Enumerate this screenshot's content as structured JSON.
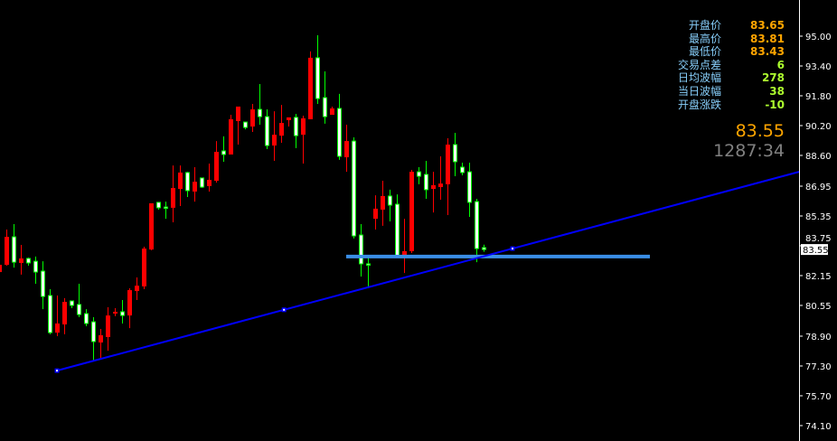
{
  "info_panel": {
    "rows": [
      {
        "label": "开盘价",
        "value": "83.65",
        "color": "#ffa500"
      },
      {
        "label": "最高价",
        "value": "83.81",
        "color": "#ffa500"
      },
      {
        "label": "最低价",
        "value": "83.43",
        "color": "#ffa500"
      },
      {
        "label": "交易点差",
        "value": "6",
        "color": "#adff2f"
      },
      {
        "label": "日均波幅",
        "value": "278",
        "color": "#adff2f"
      },
      {
        "label": "当日波幅",
        "value": "38",
        "color": "#adff2f"
      },
      {
        "label": "开盘涨跌",
        "value": "-10",
        "color": "#adff2f"
      }
    ],
    "current_price": "83.55",
    "countdown": "1287:34"
  },
  "chart_data": {
    "type": "candlestick",
    "ylim": [
      73.5,
      95.9
    ],
    "yticks": [
      "95.00",
      "93.40",
      "91.80",
      "90.20",
      "88.60",
      "86.95",
      "85.35",
      "83.75",
      "82.15",
      "80.55",
      "78.90",
      "77.30",
      "75.70",
      "74.10"
    ],
    "current_price_label": "83.55",
    "colors": {
      "up": "#ff0000",
      "down_fill": "#ffffff",
      "down_outline": "#00ff00",
      "trendline": "#0000ff",
      "support": "#3a8ee6",
      "axis": "#ffffff"
    },
    "grid": false,
    "candles_ohlc": [
      [
        82.34,
        82.87,
        82.25,
        82.73
      ],
      [
        82.73,
        84.62,
        82.68,
        84.23
      ],
      [
        84.23,
        84.91,
        82.58,
        82.87
      ],
      [
        82.83,
        83.8,
        82.2,
        83.07
      ],
      [
        83.07,
        83.12,
        82.68,
        82.83
      ],
      [
        82.92,
        83.17,
        81.71,
        82.34
      ],
      [
        82.39,
        82.92,
        80.35,
        81.03
      ],
      [
        81.08,
        81.42,
        79.0,
        79.09
      ],
      [
        79.09,
        81.08,
        78.9,
        79.58
      ],
      [
        79.53,
        80.94,
        79.0,
        80.74
      ],
      [
        80.79,
        80.79,
        80.4,
        80.55
      ],
      [
        80.6,
        81.71,
        79.92,
        80.06
      ],
      [
        80.11,
        80.35,
        79.43,
        79.58
      ],
      [
        79.67,
        79.92,
        77.54,
        78.61
      ],
      [
        78.56,
        79.29,
        77.64,
        78.95
      ],
      [
        78.85,
        80.45,
        78.12,
        80.01
      ],
      [
        80.11,
        80.4,
        79.97,
        80.21
      ],
      [
        80.21,
        80.84,
        79.58,
        80.01
      ],
      [
        80.01,
        81.47,
        79.33,
        81.37
      ],
      [
        81.32,
        82.05,
        80.84,
        81.61
      ],
      [
        81.57,
        83.7,
        81.42,
        83.6
      ],
      [
        83.55,
        86.03,
        83.51,
        86.03
      ],
      [
        86.08,
        86.08,
        85.69,
        85.79
      ],
      [
        85.83,
        86.12,
        85.2,
        85.83
      ],
      [
        85.79,
        88.06,
        85.01,
        86.85
      ],
      [
        86.8,
        88.06,
        85.88,
        87.68
      ],
      [
        87.68,
        87.72,
        86.37,
        86.71
      ],
      [
        86.66,
        87.97,
        86.12,
        87.19
      ],
      [
        87.39,
        87.39,
        86.85,
        86.9
      ],
      [
        86.95,
        88.16,
        86.66,
        87.29
      ],
      [
        87.24,
        89.37,
        87.14,
        88.79
      ],
      [
        88.84,
        89.62,
        88.26,
        88.65
      ],
      [
        88.65,
        90.78,
        88.65,
        90.54
      ],
      [
        90.44,
        91.22,
        89.18,
        91.22
      ],
      [
        90.39,
        90.39,
        90.0,
        90.1
      ],
      [
        90.15,
        91.36,
        89.86,
        91.07
      ],
      [
        91.07,
        92.43,
        90.25,
        90.68
      ],
      [
        90.68,
        91.07,
        88.94,
        89.13
      ],
      [
        89.13,
        90.97,
        88.31,
        89.71
      ],
      [
        89.66,
        91.31,
        89.28,
        90.34
      ],
      [
        90.49,
        90.64,
        90.15,
        90.64
      ],
      [
        90.64,
        90.83,
        88.99,
        89.66
      ],
      [
        89.71,
        90.73,
        88.16,
        90.59
      ],
      [
        90.54,
        94.18,
        90.54,
        93.84
      ],
      [
        93.84,
        95.05,
        91.36,
        91.65
      ],
      [
        91.7,
        93.11,
        90.3,
        90.68
      ],
      [
        90.78,
        91.22,
        90.78,
        91.12
      ],
      [
        91.12,
        91.9,
        88.36,
        88.55
      ],
      [
        88.5,
        90.25,
        87.72,
        89.37
      ],
      [
        89.37,
        89.57,
        84.14,
        84.28
      ],
      [
        84.33,
        84.91,
        82.1,
        82.78
      ],
      [
        82.78,
        83.12,
        81.47,
        82.78
      ],
      [
        85.2,
        86.46,
        84.62,
        85.74
      ],
      [
        85.69,
        87.24,
        84.82,
        86.42
      ],
      [
        86.42,
        86.76,
        85.06,
        85.93
      ],
      [
        85.98,
        86.51,
        83.12,
        83.17
      ],
      [
        83.17,
        85.2,
        82.29,
        83.46
      ],
      [
        83.46,
        87.82,
        83.36,
        87.72
      ],
      [
        87.72,
        87.97,
        87.05,
        87.48
      ],
      [
        87.58,
        88.31,
        86.27,
        86.76
      ],
      [
        86.8,
        87.72,
        85.54,
        87.0
      ],
      [
        86.9,
        88.55,
        86.22,
        87.09
      ],
      [
        87.05,
        89.52,
        85.4,
        89.18
      ],
      [
        89.18,
        89.81,
        87.48,
        88.26
      ],
      [
        87.97,
        88.21,
        87.53,
        87.68
      ],
      [
        87.72,
        88.21,
        85.3,
        86.08
      ],
      [
        86.12,
        86.27,
        82.87,
        83.6
      ],
      [
        83.65,
        83.81,
        83.43,
        83.55
      ]
    ],
    "trendline": {
      "from": {
        "bar": 8,
        "price": 77.05
      },
      "to": {
        "bar": 71,
        "price": 83.6
      },
      "mid_marker_bar": 39.4,
      "extends_right": true
    },
    "support_line": {
      "price": 83.17,
      "from_bar": 48,
      "to_bar": 90
    }
  }
}
